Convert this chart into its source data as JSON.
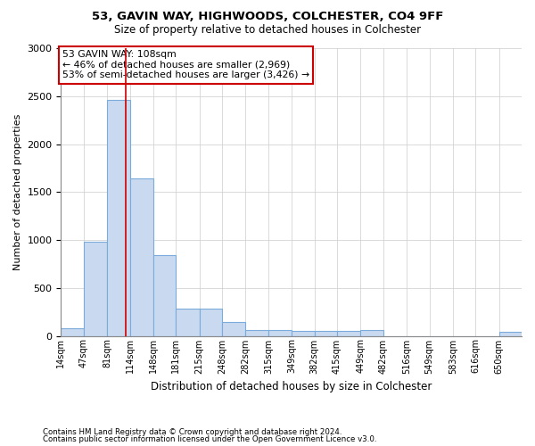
{
  "title1": "53, GAVIN WAY, HIGHWOODS, COLCHESTER, CO4 9FF",
  "title2": "Size of property relative to detached houses in Colchester",
  "xlabel": "Distribution of detached houses by size in Colchester",
  "ylabel": "Number of detached properties",
  "bar_edges": [
    14,
    47,
    81,
    114,
    148,
    181,
    215,
    248,
    282,
    315,
    349,
    382,
    415,
    449,
    482,
    516,
    549,
    583,
    616,
    650,
    683
  ],
  "bar_heights": [
    75,
    985,
    2460,
    1640,
    845,
    280,
    280,
    140,
    65,
    65,
    50,
    50,
    50,
    65,
    0,
    0,
    0,
    0,
    0,
    40
  ],
  "bar_color": "#c9daf0",
  "bar_edgecolor": "#7aabda",
  "grid_color": "#cccccc",
  "vline_x": 108,
  "vline_color": "#cc0000",
  "ylim": [
    0,
    3000
  ],
  "annotation_text": "53 GAVIN WAY: 108sqm\n← 46% of detached houses are smaller (2,969)\n53% of semi-detached houses are larger (3,426) →",
  "annotation_box_edgecolor": "#cc0000",
  "footnote1": "Contains HM Land Registry data © Crown copyright and database right 2024.",
  "footnote2": "Contains public sector information licensed under the Open Government Licence v3.0.",
  "bg_color": "#ffffff"
}
